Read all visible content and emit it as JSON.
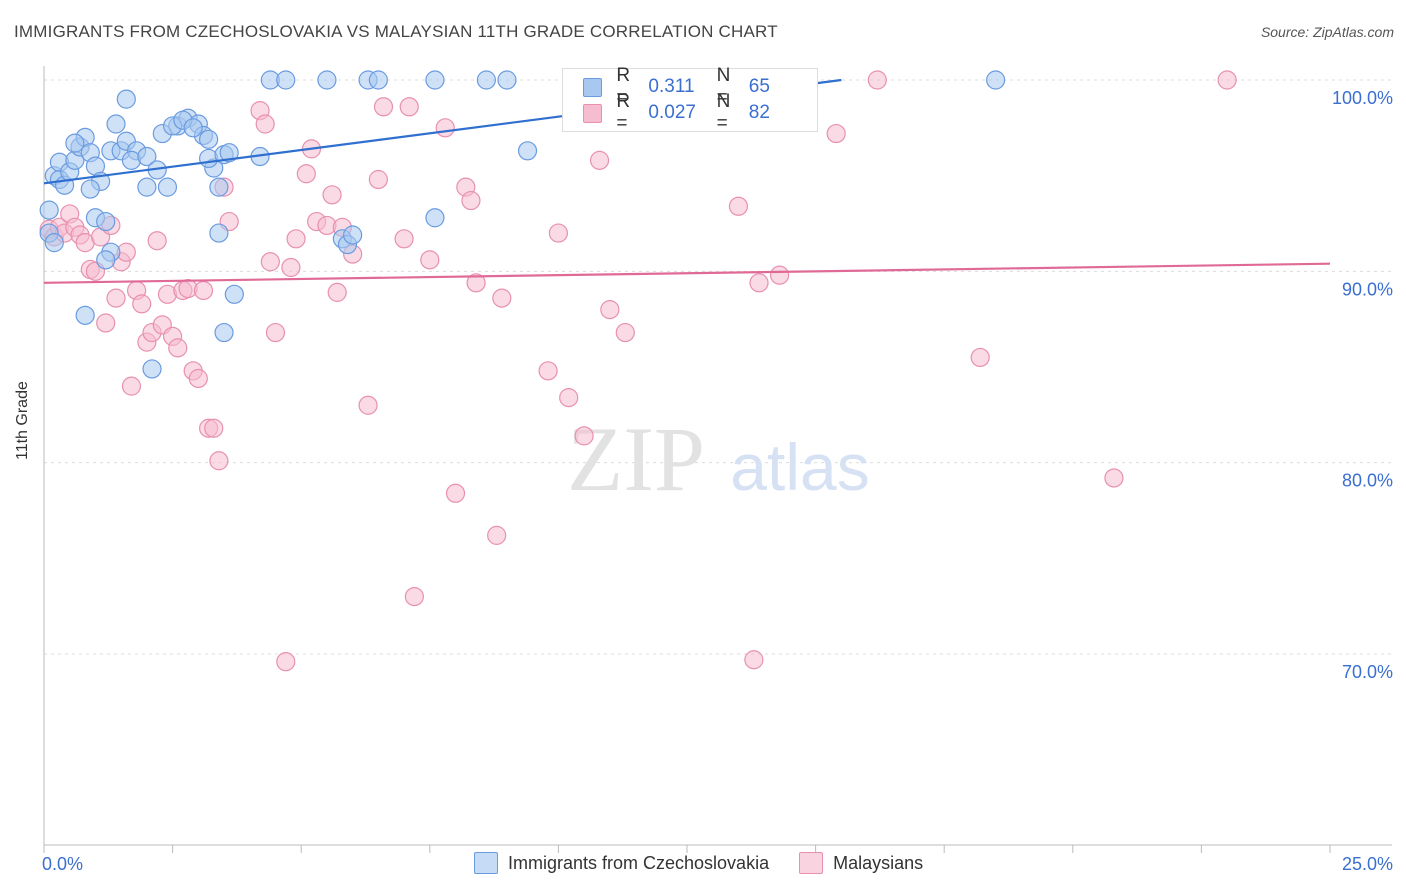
{
  "title": "IMMIGRANTS FROM CZECHOSLOVAKIA VS MALAYSIAN 11TH GRADE CORRELATION CHART",
  "source": "Source: ZipAtlas.com",
  "watermark": {
    "zip": "ZIP",
    "atlas": "atlas"
  },
  "legend": {
    "r_label": "R =",
    "n_label": "N =",
    "blue": {
      "r": "0.311",
      "n": "65"
    },
    "pink": {
      "r": "0.027",
      "n": "82"
    }
  },
  "bottom_legend": {
    "blue_label": "Immigrants from Czechoslovakia",
    "pink_label": "Malaysians"
  },
  "colors": {
    "blue_fill": "#a8c8f0",
    "blue_stroke": "#6a9be0",
    "blue_line": "#2e6fd0",
    "pink_fill": "#f6bcd0",
    "pink_stroke": "#e890b0",
    "pink_line": "#e06a96",
    "tick_label": "#3a6fd0"
  },
  "chart_data": {
    "type": "scatter",
    "title": "IMMIGRANTS FROM CZECHOSLOVAKIA VS MALAYSIAN 11TH GRADE CORRELATION CHART",
    "xlabel": "",
    "ylabel": "11th Grade",
    "xlim": [
      0,
      25
    ],
    "ylim": [
      60,
      100
    ],
    "x_tick_labels": [
      "0.0%",
      "25.0%"
    ],
    "y_ticks": [
      70,
      80,
      90,
      100
    ],
    "y_tick_labels": [
      "70.0%",
      "80.0%",
      "90.0%",
      "100.0%"
    ],
    "grid": true,
    "legend_position": "top-center",
    "series": [
      {
        "name": "Immigrants from Czechoslovakia",
        "color": "#a8c8f0",
        "trend": {
          "x": [
            0,
            15.5
          ],
          "y": [
            94.6,
            100
          ]
        },
        "points": [
          [
            0.2,
            95.0
          ],
          [
            0.3,
            94.8
          ],
          [
            0.4,
            94.5
          ],
          [
            0.3,
            95.7
          ],
          [
            0.5,
            95.2
          ],
          [
            0.6,
            95.8
          ],
          [
            0.7,
            96.5
          ],
          [
            0.8,
            97.0
          ],
          [
            0.9,
            96.2
          ],
          [
            1.0,
            95.5
          ],
          [
            1.1,
            94.7
          ],
          [
            0.9,
            94.3
          ],
          [
            1.3,
            96.3
          ],
          [
            1.5,
            96.3
          ],
          [
            1.6,
            96.8
          ],
          [
            1.8,
            96.3
          ],
          [
            1.7,
            95.8
          ],
          [
            2.0,
            96.0
          ],
          [
            2.2,
            95.3
          ],
          [
            1.4,
            97.7
          ],
          [
            2.6,
            97.6
          ],
          [
            2.8,
            98.0
          ],
          [
            3.0,
            97.7
          ],
          [
            3.1,
            97.1
          ],
          [
            3.2,
            96.9
          ],
          [
            3.3,
            95.4
          ],
          [
            3.4,
            94.4
          ],
          [
            2.3,
            97.2
          ],
          [
            2.5,
            97.6
          ],
          [
            1.6,
            99.0
          ],
          [
            0.6,
            96.7
          ],
          [
            1.0,
            92.8
          ],
          [
            1.2,
            92.6
          ],
          [
            1.3,
            91.0
          ],
          [
            1.2,
            90.6
          ],
          [
            2.4,
            94.4
          ],
          [
            2.0,
            94.4
          ],
          [
            3.2,
            95.9
          ],
          [
            3.4,
            92.0
          ],
          [
            0.8,
            87.7
          ],
          [
            2.1,
            84.9
          ],
          [
            3.5,
            96.1
          ],
          [
            3.6,
            96.2
          ],
          [
            4.2,
            96.0
          ],
          [
            3.7,
            88.8
          ],
          [
            3.5,
            86.8
          ],
          [
            4.4,
            100
          ],
          [
            4.7,
            100
          ],
          [
            5.5,
            100
          ],
          [
            6.3,
            100
          ],
          [
            6.5,
            100
          ],
          [
            7.6,
            100
          ],
          [
            8.6,
            100
          ],
          [
            9.0,
            100
          ],
          [
            5.8,
            91.7
          ],
          [
            5.9,
            91.4
          ],
          [
            6.0,
            91.9
          ],
          [
            7.6,
            92.8
          ],
          [
            9.4,
            96.3
          ],
          [
            18.5,
            100
          ],
          [
            0.1,
            93.2
          ],
          [
            0.1,
            92.0
          ],
          [
            0.2,
            91.5
          ],
          [
            2.7,
            97.9
          ],
          [
            2.9,
            97.5
          ]
        ]
      },
      {
        "name": "Malaysians",
        "color": "#f6bcd0",
        "trend": {
          "x": [
            0,
            25
          ],
          "y": [
            89.4,
            90.4
          ]
        },
        "points": [
          [
            0.1,
            92.2
          ],
          [
            0.2,
            91.8
          ],
          [
            0.3,
            92.3
          ],
          [
            0.4,
            92.0
          ],
          [
            0.5,
            93.0
          ],
          [
            0.6,
            92.3
          ],
          [
            0.7,
            91.9
          ],
          [
            0.8,
            91.5
          ],
          [
            0.9,
            90.1
          ],
          [
            1.0,
            90.0
          ],
          [
            1.1,
            91.8
          ],
          [
            1.2,
            87.3
          ],
          [
            1.3,
            92.4
          ],
          [
            1.4,
            88.6
          ],
          [
            1.5,
            90.5
          ],
          [
            1.6,
            91.0
          ],
          [
            1.7,
            84.0
          ],
          [
            1.8,
            89.0
          ],
          [
            1.9,
            88.3
          ],
          [
            2.0,
            86.3
          ],
          [
            2.1,
            86.8
          ],
          [
            2.2,
            91.6
          ],
          [
            2.3,
            87.2
          ],
          [
            2.4,
            88.8
          ],
          [
            2.5,
            86.6
          ],
          [
            2.6,
            86.0
          ],
          [
            2.7,
            89.0
          ],
          [
            2.8,
            89.1
          ],
          [
            2.9,
            84.8
          ],
          [
            3.0,
            84.4
          ],
          [
            3.1,
            89.0
          ],
          [
            3.2,
            81.8
          ],
          [
            3.3,
            81.8
          ],
          [
            3.4,
            80.1
          ],
          [
            3.5,
            94.4
          ],
          [
            3.6,
            92.6
          ],
          [
            4.2,
            98.4
          ],
          [
            4.3,
            97.7
          ],
          [
            4.4,
            90.5
          ],
          [
            4.5,
            86.8
          ],
          [
            4.7,
            69.6
          ],
          [
            4.8,
            90.2
          ],
          [
            4.9,
            91.7
          ],
          [
            5.1,
            95.1
          ],
          [
            5.2,
            96.4
          ],
          [
            5.3,
            92.6
          ],
          [
            5.5,
            92.4
          ],
          [
            5.6,
            94.0
          ],
          [
            5.7,
            88.9
          ],
          [
            5.8,
            92.3
          ],
          [
            6.0,
            90.9
          ],
          [
            6.3,
            83.0
          ],
          [
            6.5,
            94.8
          ],
          [
            6.6,
            98.6
          ],
          [
            7.0,
            91.7
          ],
          [
            7.1,
            98.6
          ],
          [
            7.2,
            73.0
          ],
          [
            7.5,
            90.6
          ],
          [
            7.8,
            97.5
          ],
          [
            8.0,
            78.4
          ],
          [
            8.2,
            94.4
          ],
          [
            8.3,
            93.7
          ],
          [
            8.4,
            89.4
          ],
          [
            8.8,
            76.2
          ],
          [
            8.9,
            88.6
          ],
          [
            9.8,
            84.8
          ],
          [
            10.0,
            92.0
          ],
          [
            10.2,
            83.4
          ],
          [
            10.5,
            81.4
          ],
          [
            10.8,
            95.8
          ],
          [
            11.0,
            88.0
          ],
          [
            11.3,
            86.8
          ],
          [
            11.5,
            100
          ],
          [
            13.5,
            93.4
          ],
          [
            13.8,
            69.7
          ],
          [
            13.9,
            89.4
          ],
          [
            14.3,
            89.8
          ],
          [
            15.4,
            97.2
          ],
          [
            16.2,
            100
          ],
          [
            18.2,
            85.5
          ],
          [
            20.8,
            79.2
          ],
          [
            23.0,
            100
          ]
        ]
      }
    ]
  }
}
